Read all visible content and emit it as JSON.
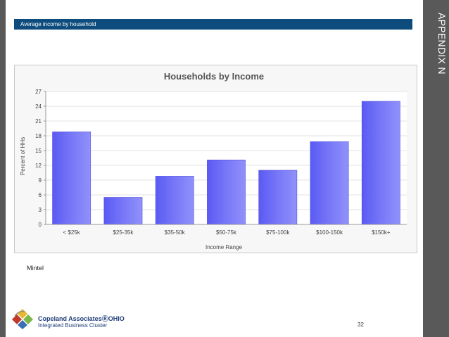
{
  "header": {
    "title": "Average income by household"
  },
  "side_label": "APPENDIX N",
  "source_label": "Mintel",
  "footer": {
    "logo_line1": "Copeland AssociatesⓇOHIO",
    "logo_line2": "Integrated Business Cluster",
    "page_number": "32"
  },
  "colors": {
    "header_bar": "#0d4c7d",
    "side_bars": "#595959",
    "bar_fill": "#6f6ff7"
  },
  "chart_data": {
    "type": "bar",
    "title": "Households by Income",
    "xlabel": "Income Range",
    "ylabel": "Percent of HHs",
    "categories": [
      "< $25k",
      "$25-35k",
      "$35-50k",
      "$50-75k",
      "$75-100k",
      "$100-150k",
      "$150k+"
    ],
    "values": [
      18.8,
      5.5,
      9.8,
      13.1,
      11.0,
      16.8,
      25.0
    ],
    "ylim": [
      0,
      27
    ],
    "yticks": [
      0,
      3,
      6,
      9,
      12,
      15,
      18,
      21,
      24,
      27
    ],
    "grid": true
  }
}
